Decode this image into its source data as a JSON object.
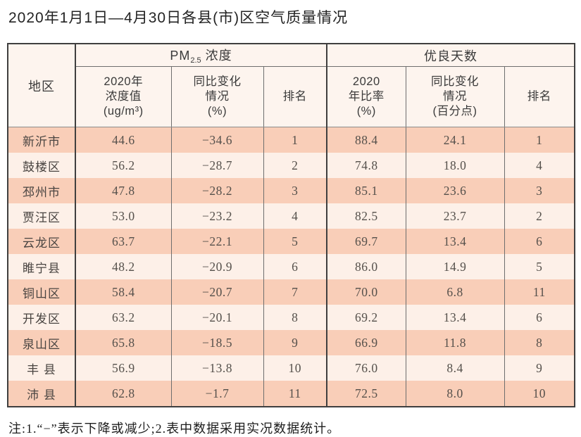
{
  "page": {
    "title": "2020年1月1日—4月30日各县(市)区空气质量情况",
    "note": "注:1.“−”表示下降或减少;2.表中数据采用实况数据统计。"
  },
  "colors": {
    "row_odd": "#f9ceb8",
    "row_even": "#fdf0e8",
    "header_bg": "#fdf4ee",
    "border_dark": "#3f3f3f",
    "border_light": "#6e6e6e"
  },
  "table": {
    "corner_header": "地区",
    "group_headers": {
      "pm": {
        "prefix": "PM",
        "sub": "2.5",
        "suffix": " 浓度"
      },
      "good": "优良天数"
    },
    "sub_headers": {
      "pm_value": [
        "2020年",
        "浓度值",
        "(ug/m³)"
      ],
      "pm_change": [
        "同比变化",
        "情况",
        "(%)"
      ],
      "pm_rank": "排名",
      "good_ratio": [
        "2020",
        "年比率",
        "(%)"
      ],
      "good_change": [
        "同比变化",
        "情况",
        "(百分点)"
      ],
      "good_rank": "排名"
    },
    "rows": [
      {
        "region": "新沂市",
        "pm_value": "44.6",
        "pm_change": "−34.6",
        "pm_rank": "1",
        "good_ratio": "88.4",
        "good_change": "24.1",
        "good_rank": "1"
      },
      {
        "region": "鼓楼区",
        "pm_value": "56.2",
        "pm_change": "−28.7",
        "pm_rank": "2",
        "good_ratio": "74.8",
        "good_change": "18.0",
        "good_rank": "4"
      },
      {
        "region": "邳州市",
        "pm_value": "47.8",
        "pm_change": "−28.2",
        "pm_rank": "3",
        "good_ratio": "85.1",
        "good_change": "23.6",
        "good_rank": "3"
      },
      {
        "region": "贾汪区",
        "pm_value": "53.0",
        "pm_change": "−23.2",
        "pm_rank": "4",
        "good_ratio": "82.5",
        "good_change": "23.7",
        "good_rank": "2"
      },
      {
        "region": "云龙区",
        "pm_value": "63.7",
        "pm_change": "−22.1",
        "pm_rank": "5",
        "good_ratio": "69.7",
        "good_change": "13.4",
        "good_rank": "6"
      },
      {
        "region": "睢宁县",
        "pm_value": "48.2",
        "pm_change": "−20.9",
        "pm_rank": "6",
        "good_ratio": "86.0",
        "good_change": "14.9",
        "good_rank": "5"
      },
      {
        "region": "铜山区",
        "pm_value": "58.4",
        "pm_change": "−20.7",
        "pm_rank": "7",
        "good_ratio": "70.0",
        "good_change": "6.8",
        "good_rank": "11"
      },
      {
        "region": "开发区",
        "pm_value": "63.2",
        "pm_change": "−20.1",
        "pm_rank": "8",
        "good_ratio": "69.2",
        "good_change": "13.4",
        "good_rank": "6"
      },
      {
        "region": "泉山区",
        "pm_value": "65.8",
        "pm_change": "−18.5",
        "pm_rank": "9",
        "good_ratio": "66.9",
        "good_change": "11.8",
        "good_rank": "8"
      },
      {
        "region": "丰 县",
        "pm_value": "56.9",
        "pm_change": "−13.8",
        "pm_rank": "10",
        "good_ratio": "76.0",
        "good_change": "8.4",
        "good_rank": "9"
      },
      {
        "region": "沛 县",
        "pm_value": "62.8",
        "pm_change": "−1.7",
        "pm_rank": "11",
        "good_ratio": "72.5",
        "good_change": "8.0",
        "good_rank": "10"
      }
    ]
  }
}
